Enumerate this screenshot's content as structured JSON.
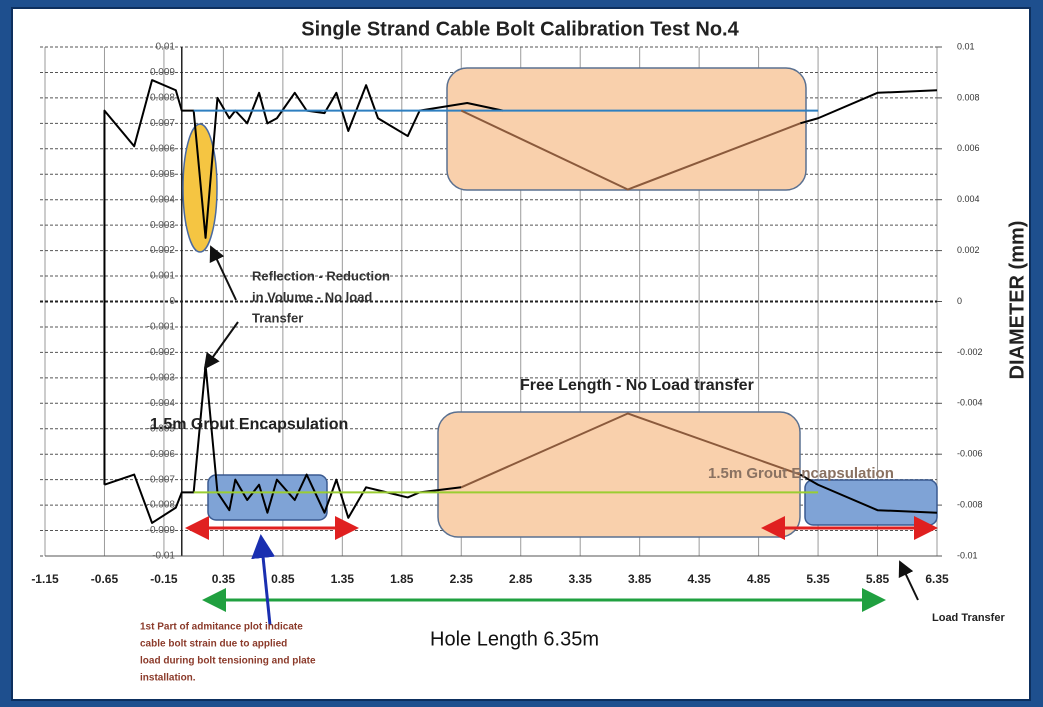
{
  "chart_data": {
    "type": "line",
    "title": "Single Strand Cable Bolt Calibration Test  No.4",
    "y2label": "DIAMETER (mm)",
    "xlim": [
      -1.15,
      6.35
    ],
    "xticks": [
      -1.15,
      -0.65,
      -0.15,
      0.35,
      0.85,
      1.35,
      1.85,
      2.35,
      2.85,
      3.35,
      3.85,
      4.35,
      4.85,
      5.35,
      5.85,
      6.35
    ],
    "ylim": [
      -0.01,
      0.01
    ],
    "yticks": [
      0.01,
      0.009,
      0.008,
      0.007,
      0.006,
      0.005,
      0.004,
      0.003,
      0.002,
      0.001,
      0,
      -0.001,
      -0.002,
      -0.003,
      -0.004,
      -0.005,
      -0.006,
      -0.007,
      -0.008,
      -0.009,
      -0.01
    ],
    "y2lim": [
      -0.01,
      0.01
    ],
    "y2ticks": [
      0.01,
      0.008,
      0.006,
      0.004,
      0.002,
      0,
      -0.002,
      -0.004,
      -0.006,
      -0.008,
      -0.01
    ],
    "grid": true,
    "series": [
      {
        "color": "#000000",
        "x": [
          -0.65,
          -0.65,
          -0.4,
          -0.25,
          -0.05,
          0.0,
          0.1,
          0.2,
          0.3,
          0.4,
          0.45,
          0.55,
          0.65,
          0.72,
          0.8,
          0.95,
          1.05,
          1.2,
          1.3,
          1.4,
          1.55,
          1.65,
          1.9,
          2.0,
          2.4,
          2.7,
          3.75,
          5.2,
          5.35,
          5.85,
          6.35
        ],
        "values": [
          -0.0072,
          0.0075,
          0.0061,
          0.0087,
          0.0083,
          0.0075,
          0.0075,
          0.0025,
          0.008,
          0.0072,
          0.0075,
          0.007,
          0.0082,
          0.007,
          0.0072,
          0.0082,
          0.0075,
          0.0074,
          0.0082,
          0.0067,
          0.0085,
          0.0072,
          0.0065,
          0.0075,
          0.0078,
          0.0075,
          null,
          0.007,
          0.0072,
          0.0082,
          0.0083
        ]
      },
      {
        "color": "#000000",
        "x": [
          -0.65,
          -0.4,
          -0.25,
          -0.05,
          0.0,
          0.1,
          0.2,
          0.3,
          0.4,
          0.45,
          0.55,
          0.65,
          0.72,
          0.8,
          0.95,
          1.05,
          1.2,
          1.3,
          1.4,
          1.55,
          1.9,
          2.0,
          2.35,
          3.75,
          5.2,
          5.35,
          5.85,
          6.35
        ],
        "values": [
          -0.0072,
          -0.0068,
          -0.0087,
          -0.0081,
          -0.0075,
          -0.0075,
          -0.0025,
          -0.0075,
          -0.0082,
          -0.007,
          -0.0078,
          -0.0072,
          -0.0083,
          -0.007,
          -0.0078,
          -0.0068,
          -0.0083,
          -0.007,
          -0.0085,
          -0.0073,
          -0.0077,
          -0.0075,
          -0.0073,
          null,
          -0.0068,
          -0.0072,
          -0.0082,
          -0.0083
        ]
      },
      {
        "color": "#2e7fc0",
        "x": [
          0.1,
          5.35
        ],
        "values": [
          0.0075,
          0.0075
        ]
      },
      {
        "color": "#9acd32",
        "x": [
          0.1,
          5.35
        ],
        "values": [
          -0.0075,
          -0.0075
        ]
      },
      {
        "color": "#8b5a3c",
        "x": [
          2.35,
          3.75,
          5.2
        ],
        "values": [
          0.0075,
          0.0044,
          0.007
        ]
      },
      {
        "color": "#8b5a3c",
        "x": [
          2.35,
          3.75,
          5.2
        ],
        "values": [
          -0.0073,
          -0.0044,
          -0.0068
        ]
      }
    ],
    "annotations": [
      {
        "lines": [
          "Reflection - Reduction",
          "in Volume - No load",
          "Transfer"
        ]
      },
      {
        "lines": [
          "Free Length - No Load transfer"
        ]
      },
      {
        "lines": [
          "1.5m Grout Encapsulation"
        ]
      },
      {
        "lines": [
          "1.5m Grout Encapsulation"
        ]
      },
      {
        "lines": [
          "1st Part of admitance plot  indicate",
          "cable bolt strain due to applied",
          "load during bolt tensioning and plate",
          "installation."
        ]
      },
      {
        "lines": [
          "Hole Length 6.35m"
        ]
      },
      {
        "lines": [
          "Load Transfer"
        ]
      }
    ]
  }
}
